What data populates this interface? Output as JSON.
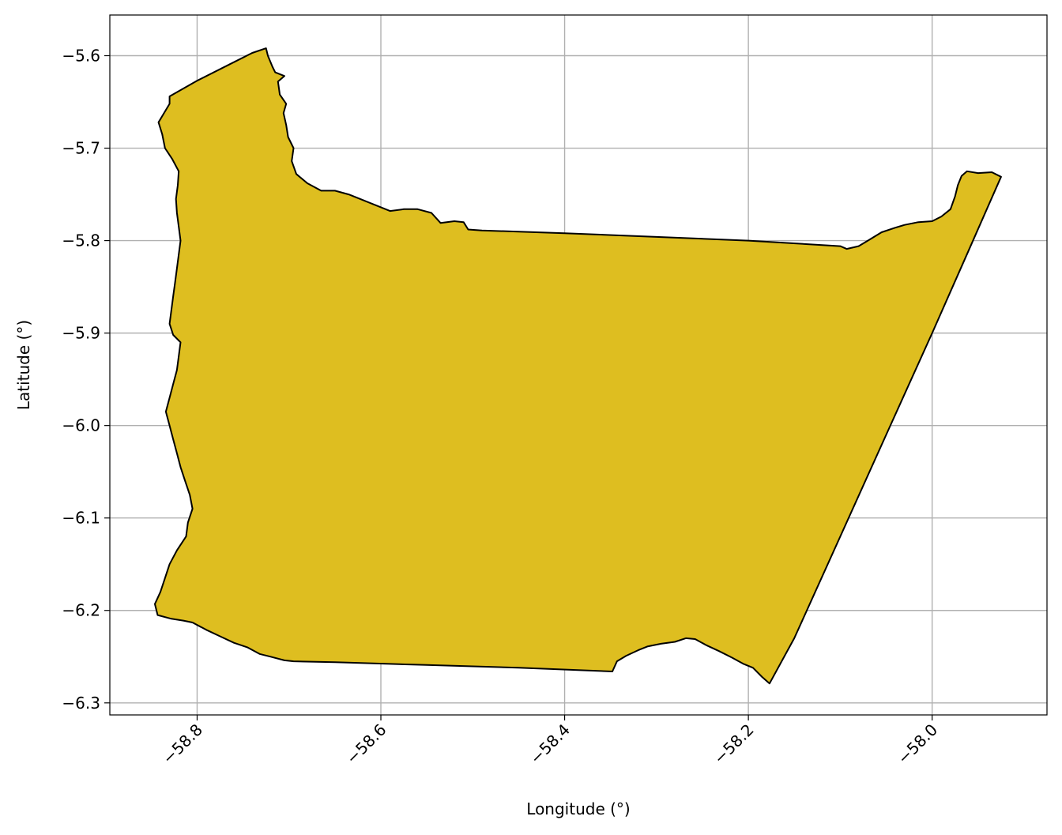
{
  "chart_data": {
    "type": "map",
    "xlabel": "Longitude (°)",
    "ylabel": "Latitude (°)",
    "xlim": [
      -58.895,
      -57.875
    ],
    "ylim": [
      -6.313,
      -5.556
    ],
    "xticks": [
      -58.8,
      -58.6,
      -58.4,
      -58.2,
      -58.0
    ],
    "xtick_labels": [
      "−58.8",
      "−58.6",
      "−58.4",
      "−58.2",
      "−58.0"
    ],
    "yticks": [
      -5.6,
      -5.7,
      -5.8,
      -5.9,
      -6.0,
      -6.1,
      -6.2,
      -6.3
    ],
    "ytick_labels": [
      "−5.6",
      "−5.7",
      "−5.8",
      "−5.9",
      "−6.0",
      "−6.1",
      "−6.2",
      "−6.3"
    ],
    "grid": true,
    "fill_color": "#DEBE20",
    "edge_color": "#000000",
    "polygon": [
      [
        -58.83,
        -5.644
      ],
      [
        -58.8,
        -5.627
      ],
      [
        -58.76,
        -5.607
      ],
      [
        -58.74,
        -5.597
      ],
      [
        -58.725,
        -5.592
      ],
      [
        -58.723,
        -5.6
      ],
      [
        -58.718,
        -5.612
      ],
      [
        -58.715,
        -5.618
      ],
      [
        -58.705,
        -5.622
      ],
      [
        -58.712,
        -5.628
      ],
      [
        -58.71,
        -5.642
      ],
      [
        -58.703,
        -5.652
      ],
      [
        -58.706,
        -5.662
      ],
      [
        -58.703,
        -5.675
      ],
      [
        -58.701,
        -5.688
      ],
      [
        -58.695,
        -5.7
      ],
      [
        -58.697,
        -5.714
      ],
      [
        -58.692,
        -5.728
      ],
      [
        -58.68,
        -5.738
      ],
      [
        -58.665,
        -5.746
      ],
      [
        -58.65,
        -5.746
      ],
      [
        -58.635,
        -5.75
      ],
      [
        -58.62,
        -5.756
      ],
      [
        -58.605,
        -5.762
      ],
      [
        -58.59,
        -5.768
      ],
      [
        -58.575,
        -5.766
      ],
      [
        -58.56,
        -5.766
      ],
      [
        -58.545,
        -5.77
      ],
      [
        -58.535,
        -5.781
      ],
      [
        -58.52,
        -5.779
      ],
      [
        -58.51,
        -5.78
      ],
      [
        -58.505,
        -5.788
      ],
      [
        -58.49,
        -5.789
      ],
      [
        -58.4,
        -5.792
      ],
      [
        -58.3,
        -5.796
      ],
      [
        -58.2,
        -5.8
      ],
      [
        -58.1,
        -5.806
      ],
      [
        -58.093,
        -5.809
      ],
      [
        -58.08,
        -5.806
      ],
      [
        -58.07,
        -5.8
      ],
      [
        -58.055,
        -5.791
      ],
      [
        -58.04,
        -5.786
      ],
      [
        -58.03,
        -5.783
      ],
      [
        -58.015,
        -5.78
      ],
      [
        -58.0,
        -5.779
      ],
      [
        -57.99,
        -5.774
      ],
      [
        -57.98,
        -5.766
      ],
      [
        -57.975,
        -5.752
      ],
      [
        -57.972,
        -5.74
      ],
      [
        -57.968,
        -5.73
      ],
      [
        -57.962,
        -5.725
      ],
      [
        -57.95,
        -5.727
      ],
      [
        -57.935,
        -5.726
      ],
      [
        -57.925,
        -5.731
      ],
      [
        -57.96,
        -5.81
      ],
      [
        -58.0,
        -5.9
      ],
      [
        -58.05,
        -6.01
      ],
      [
        -58.1,
        -6.12
      ],
      [
        -58.15,
        -6.23
      ],
      [
        -58.177,
        -6.279
      ],
      [
        -58.185,
        -6.272
      ],
      [
        -58.195,
        -6.262
      ],
      [
        -58.205,
        -6.258
      ],
      [
        -58.218,
        -6.251
      ],
      [
        -58.232,
        -6.244
      ],
      [
        -58.245,
        -6.238
      ],
      [
        -58.258,
        -6.231
      ],
      [
        -58.268,
        -6.23
      ],
      [
        -58.28,
        -6.234
      ],
      [
        -58.295,
        -6.236
      ],
      [
        -58.31,
        -6.239
      ],
      [
        -58.32,
        -6.243
      ],
      [
        -58.333,
        -6.249
      ],
      [
        -58.343,
        -6.255
      ],
      [
        -58.348,
        -6.266
      ],
      [
        -58.45,
        -6.262
      ],
      [
        -58.55,
        -6.259
      ],
      [
        -58.65,
        -6.256
      ],
      [
        -58.695,
        -6.255
      ],
      [
        -58.705,
        -6.254
      ],
      [
        -58.72,
        -6.25
      ],
      [
        -58.732,
        -6.247
      ],
      [
        -58.745,
        -6.24
      ],
      [
        -58.76,
        -6.235
      ],
      [
        -58.775,
        -6.228
      ],
      [
        -58.79,
        -6.221
      ],
      [
        -58.805,
        -6.213
      ],
      [
        -58.815,
        -6.211
      ],
      [
        -58.828,
        -6.209
      ],
      [
        -58.843,
        -6.205
      ],
      [
        -58.846,
        -6.193
      ],
      [
        -58.84,
        -6.18
      ],
      [
        -58.835,
        -6.165
      ],
      [
        -58.83,
        -6.15
      ],
      [
        -58.822,
        -6.135
      ],
      [
        -58.812,
        -6.12
      ],
      [
        -58.81,
        -6.105
      ],
      [
        -58.805,
        -6.09
      ],
      [
        -58.808,
        -6.075
      ],
      [
        -58.813,
        -6.06
      ],
      [
        -58.818,
        -6.045
      ],
      [
        -58.822,
        -6.03
      ],
      [
        -58.826,
        -6.015
      ],
      [
        -58.83,
        -6.0
      ],
      [
        -58.834,
        -5.985
      ],
      [
        -58.83,
        -5.97
      ],
      [
        -58.826,
        -5.955
      ],
      [
        -58.822,
        -5.94
      ],
      [
        -58.82,
        -5.925
      ],
      [
        -58.818,
        -5.91
      ],
      [
        -58.826,
        -5.902
      ],
      [
        -58.83,
        -5.89
      ],
      [
        -58.828,
        -5.875
      ],
      [
        -58.826,
        -5.86
      ],
      [
        -58.824,
        -5.845
      ],
      [
        -58.822,
        -5.83
      ],
      [
        -58.82,
        -5.815
      ],
      [
        -58.818,
        -5.8
      ],
      [
        -58.82,
        -5.785
      ],
      [
        -58.822,
        -5.77
      ],
      [
        -58.823,
        -5.755
      ],
      [
        -58.821,
        -5.74
      ],
      [
        -58.82,
        -5.725
      ],
      [
        -58.827,
        -5.712
      ],
      [
        -58.835,
        -5.7
      ],
      [
        -58.838,
        -5.685
      ],
      [
        -58.842,
        -5.672
      ],
      [
        -58.836,
        -5.662
      ],
      [
        -58.83,
        -5.652
      ]
    ]
  }
}
